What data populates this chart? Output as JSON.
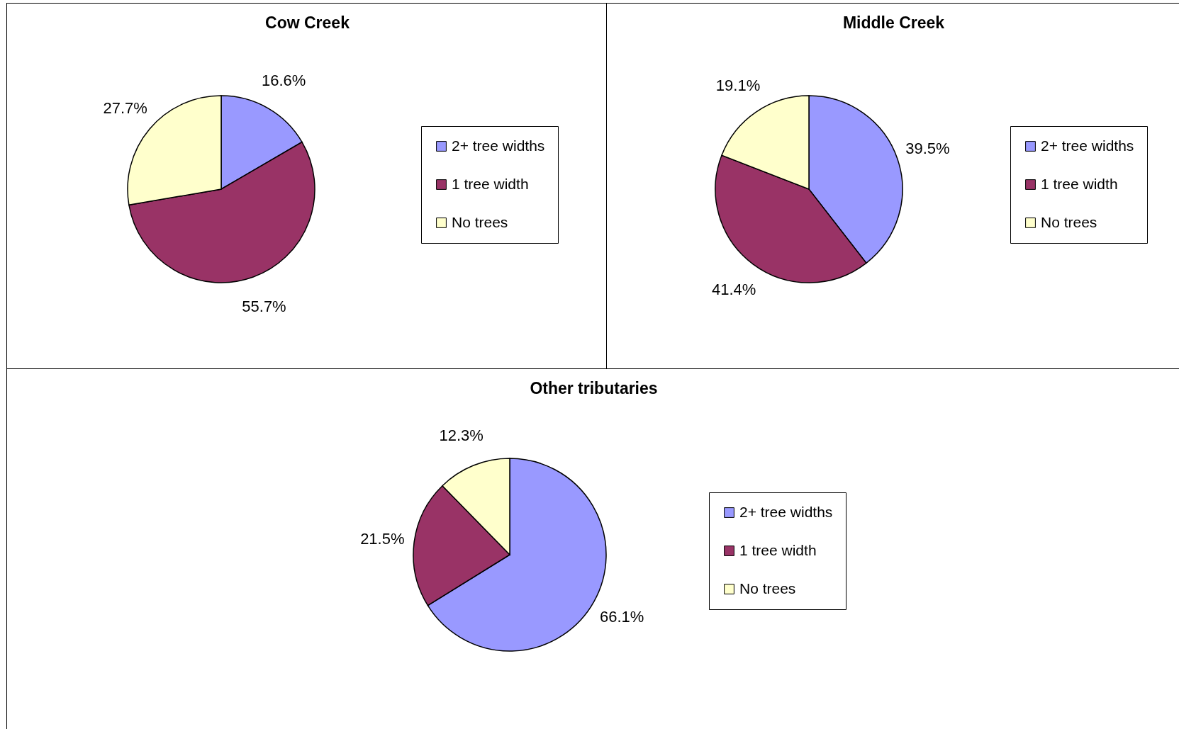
{
  "chart_data": [
    {
      "type": "pie",
      "title": "Cow Creek",
      "categories": [
        "2+ tree widths",
        "1 tree width",
        "No trees"
      ],
      "values": [
        16.6,
        55.7,
        27.7
      ],
      "value_labels": [
        "16.6%",
        "55.7%",
        "27.7%"
      ],
      "colors": [
        "#9999ff",
        "#993366",
        "#ffffcc"
      ],
      "legend": "right"
    },
    {
      "type": "pie",
      "title": "Middle Creek",
      "categories": [
        "2+ tree widths",
        "1 tree width",
        "No trees"
      ],
      "values": [
        39.5,
        41.4,
        19.1
      ],
      "value_labels": [
        "39.5%",
        "41.4%",
        "19.1%"
      ],
      "colors": [
        "#9999ff",
        "#993366",
        "#ffffcc"
      ],
      "legend": "right"
    },
    {
      "type": "pie",
      "title": "Other tributaries",
      "categories": [
        "2+ tree widths",
        "1 tree width",
        "No trees"
      ],
      "values": [
        66.1,
        21.5,
        12.3
      ],
      "value_labels": [
        "66.1%",
        "21.5%",
        "12.3%"
      ],
      "colors": [
        "#9999ff",
        "#993366",
        "#ffffcc"
      ],
      "legend": "right"
    }
  ]
}
